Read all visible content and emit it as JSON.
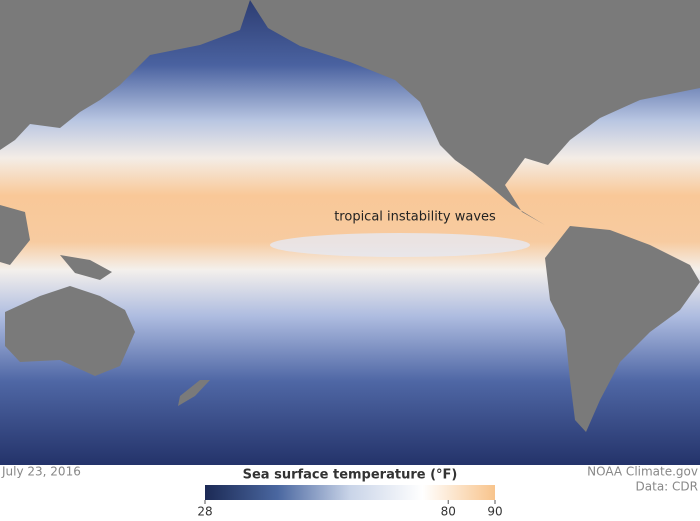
{
  "annotation": "tropical instability waves",
  "date": "July 23, 2016",
  "credit": "NOAA Climate.gov",
  "source": "Data: CDR",
  "legend": {
    "title": "Sea surface temperature (°F)",
    "lim": [
      28,
      90
    ],
    "ticks": [
      28,
      80,
      90
    ],
    "colors": [
      "#1c2a55",
      "#4a67a0",
      "#c9d4e8",
      "#ffffff",
      "#f8c48c"
    ]
  }
}
